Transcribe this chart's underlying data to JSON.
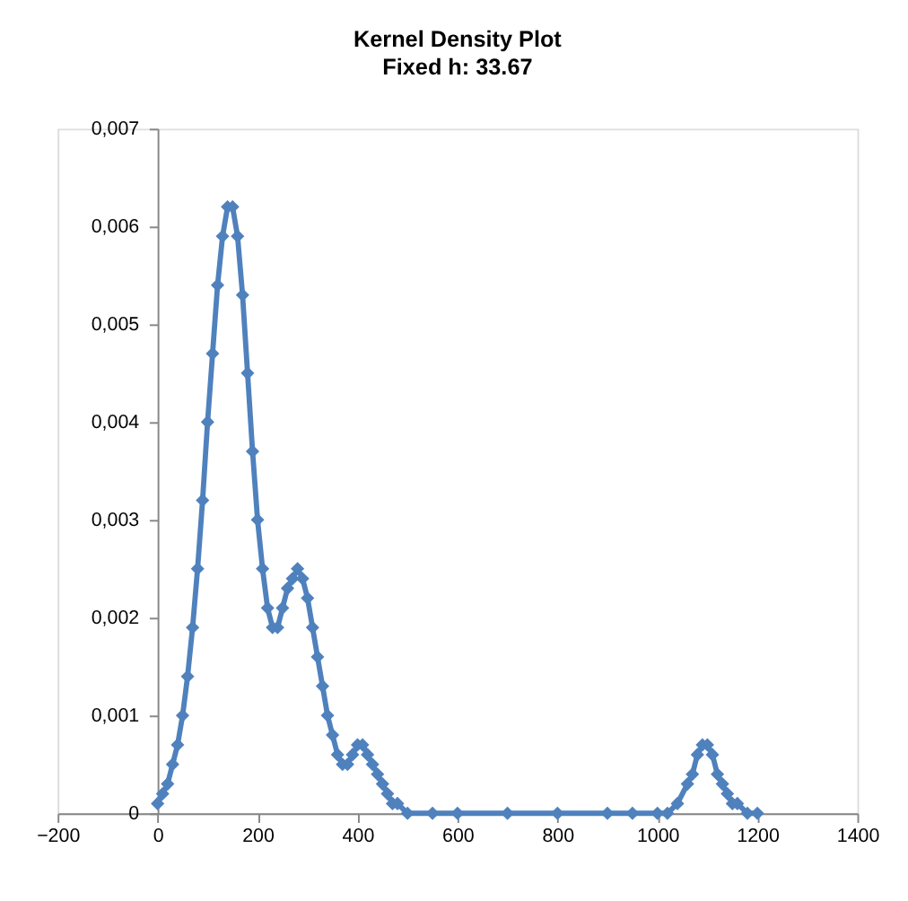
{
  "chart_data": {
    "type": "line",
    "title": "Kernel Density Plot",
    "subtitle": "Fixed h: 33.67",
    "x": [
      0,
      10,
      20,
      30,
      40,
      50,
      60,
      70,
      80,
      90,
      100,
      110,
      120,
      130,
      140,
      150,
      160,
      170,
      180,
      190,
      200,
      210,
      220,
      230,
      240,
      250,
      260,
      270,
      280,
      290,
      300,
      310,
      320,
      330,
      340,
      350,
      360,
      370,
      380,
      390,
      400,
      410,
      420,
      430,
      440,
      450,
      460,
      470,
      480,
      500,
      550,
      600,
      700,
      800,
      900,
      950,
      1000,
      1020,
      1040,
      1060,
      1070,
      1080,
      1090,
      1100,
      1110,
      1120,
      1130,
      1140,
      1150,
      1160,
      1180,
      1200
    ],
    "series": [
      {
        "color": "#4f81bd",
        "values": [
          0.0001,
          0.0002,
          0.0003,
          0.0005,
          0.0007,
          0.001,
          0.0014,
          0.0019,
          0.0025,
          0.0032,
          0.004,
          0.0047,
          0.0054,
          0.0059,
          0.0062,
          0.0062,
          0.0059,
          0.0053,
          0.0045,
          0.0037,
          0.003,
          0.0025,
          0.0021,
          0.0019,
          0.0019,
          0.0021,
          0.0023,
          0.0024,
          0.0025,
          0.0024,
          0.0022,
          0.0019,
          0.0016,
          0.0013,
          0.001,
          0.0008,
          0.0006,
          0.0005,
          0.0005,
          0.0006,
          0.0007,
          0.0007,
          0.0006,
          0.0005,
          0.0004,
          0.0003,
          0.0002,
          0.0001,
          0.0001,
          0,
          0,
          0,
          0,
          0,
          0,
          0,
          0,
          0,
          0.0001,
          0.0003,
          0.0004,
          0.0006,
          0.0007,
          0.0007,
          0.0006,
          0.0004,
          0.0003,
          0.0002,
          0.0001,
          0.0001,
          0,
          0
        ]
      }
    ],
    "marker": "diamond",
    "line_style": "solid",
    "grid": false,
    "xlim": [
      -200,
      1400
    ],
    "xticks": [
      -200,
      0,
      200,
      400,
      600,
      800,
      1000,
      1200,
      1400
    ],
    "ylim": [
      0,
      0.007
    ],
    "yticks": [
      {
        "value": 0,
        "label": "0"
      },
      {
        "value": 0.001,
        "label": "0,001"
      },
      {
        "value": 0.002,
        "label": "0,002"
      },
      {
        "value": 0.003,
        "label": "0,003"
      },
      {
        "value": 0.004,
        "label": "0,004"
      },
      {
        "value": 0.005,
        "label": "0,005"
      },
      {
        "value": 0.006,
        "label": "0,006"
      },
      {
        "value": 0.007,
        "label": "0,007"
      }
    ]
  }
}
